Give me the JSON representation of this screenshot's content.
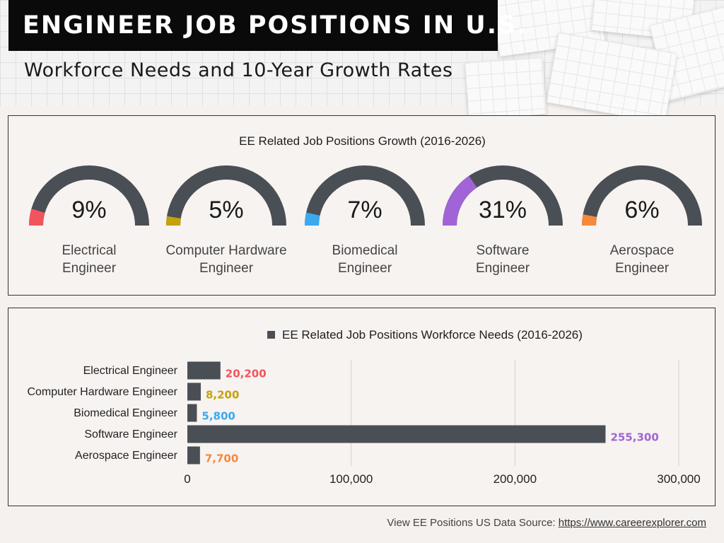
{
  "header": {
    "title": "ENGINEER JOB POSITIONS IN U.S.",
    "subtitle": "Workforce Needs and 10-Year Growth Rates"
  },
  "colors": {
    "track": "#4a4e55",
    "electrical": "#f2545b",
    "hardware": "#c5a106",
    "biomedical": "#3aa9ee",
    "software": "#a064d6",
    "aerospace": "#f6893a"
  },
  "chart_data": [
    {
      "type": "gauge",
      "title": "EE Related Job Positions Growth (2016-2026)",
      "items": [
        {
          "label_line1": "Electrical",
          "label_line2": "Engineer",
          "value": 9,
          "display": "9%",
          "color": "#f2545b"
        },
        {
          "label_line1": "Computer Hardware",
          "label_line2": "Engineer",
          "value": 5,
          "display": "5%",
          "color": "#c5a106"
        },
        {
          "label_line1": "Biomedical",
          "label_line2": "Engineer",
          "value": 7,
          "display": "7%",
          "color": "#3aa9ee"
        },
        {
          "label_line1": "Software",
          "label_line2": "Engineer",
          "value": 31,
          "display": "31%",
          "color": "#a064d6"
        },
        {
          "label_line1": "Aerospace",
          "label_line2": "Engineer",
          "value": 6,
          "display": "6%",
          "color": "#f6893a"
        }
      ]
    },
    {
      "type": "bar",
      "orientation": "horizontal",
      "title": "EE Related Job Positions Workforce Needs (2016-2026)",
      "categories": [
        "Electrical Engineer",
        "Computer Hardware Engineer",
        "Biomedical Engineer",
        "Software Engineer",
        "Aerospace Engineer"
      ],
      "values": [
        20200,
        8200,
        5800,
        255300,
        7700
      ],
      "value_labels": [
        "20,200",
        "8,200",
        "5,800",
        "255,300",
        "7,700"
      ],
      "label_colors": [
        "#f2545b",
        "#c5a106",
        "#3aa9ee",
        "#a064d6",
        "#f6893a"
      ],
      "xlim": [
        0,
        300000
      ],
      "xticks": [
        0,
        100000,
        200000,
        300000
      ],
      "xtick_labels": [
        "0",
        "100,000",
        "200,000",
        "300,000"
      ],
      "grid": true,
      "bar_color": "#4a4e55"
    }
  ],
  "footer": {
    "text": "View EE Positions US Data Source: ",
    "link": "https://www.careerexplorer.com"
  }
}
